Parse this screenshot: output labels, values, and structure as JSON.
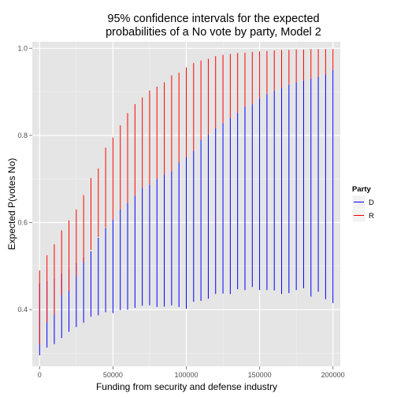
{
  "chart_data": {
    "type": "errorbar",
    "title_lines": [
      "95% confidence intervals for the expected",
      "probabilities of a No vote by party, Model 2"
    ],
    "xlabel": "Funding from security and defense industry",
    "ylabel": "Expected P(votes No)",
    "xlim": [
      -5000,
      205000
    ],
    "ylim": [
      0.27,
      1.015
    ],
    "x_ticks": [
      0,
      50000,
      100000,
      150000,
      200000
    ],
    "x_tick_labels": [
      "0",
      "50000",
      "100000",
      "150000",
      "200000"
    ],
    "y_ticks": [
      0.4,
      0.6,
      0.8,
      1.0
    ],
    "y_tick_labels": [
      "0.4",
      "0.6",
      "0.8",
      "1.0"
    ],
    "grid": true,
    "legend": {
      "title": "Party",
      "position": "right"
    },
    "series": [
      {
        "name": "D",
        "color": "#0000ff",
        "x": [
          0,
          5000,
          10000,
          15000,
          20000,
          25000,
          30000,
          35000,
          40000,
          45000,
          50000,
          55000,
          60000,
          65000,
          70000,
          75000,
          80000,
          85000,
          90000,
          95000,
          100000,
          105000,
          110000,
          115000,
          120000,
          125000,
          130000,
          135000,
          140000,
          145000,
          150000,
          155000,
          160000,
          165000,
          170000,
          175000,
          180000,
          185000,
          190000,
          195000,
          200000
        ],
        "lower": [
          0.295,
          0.313,
          0.321,
          0.335,
          0.349,
          0.36,
          0.37,
          0.384,
          0.387,
          0.394,
          0.392,
          0.399,
          0.4,
          0.404,
          0.409,
          0.41,
          0.406,
          0.407,
          0.41,
          0.406,
          0.402,
          0.418,
          0.42,
          0.425,
          0.436,
          0.437,
          0.436,
          0.447,
          0.445,
          0.452,
          0.445,
          0.445,
          0.444,
          0.436,
          0.438,
          0.445,
          0.449,
          0.43,
          0.441,
          0.424,
          0.415
        ],
        "upper": [
          0.46,
          0.465,
          0.472,
          0.482,
          0.493,
          0.507,
          0.52,
          0.534,
          0.565,
          0.588,
          0.607,
          0.63,
          0.645,
          0.662,
          0.68,
          0.687,
          0.7,
          0.71,
          0.718,
          0.738,
          0.75,
          0.765,
          0.79,
          0.802,
          0.816,
          0.828,
          0.84,
          0.852,
          0.866,
          0.872,
          0.885,
          0.895,
          0.903,
          0.91,
          0.917,
          0.922,
          0.926,
          0.93,
          0.935,
          0.94,
          0.95
        ]
      },
      {
        "name": "R",
        "color": "#ff0000",
        "x": [
          0,
          5000,
          10000,
          15000,
          20000,
          25000,
          30000,
          35000,
          40000,
          45000,
          50000,
          55000,
          60000,
          65000,
          70000,
          75000,
          80000,
          85000,
          90000,
          95000,
          100000,
          105000,
          110000,
          115000,
          120000,
          125000,
          130000,
          135000,
          140000,
          145000,
          150000,
          155000,
          160000,
          165000,
          170000,
          175000,
          180000,
          185000,
          190000,
          195000,
          200000
        ],
        "lower": [
          0.32,
          0.371,
          0.389,
          0.434,
          0.443,
          0.477,
          0.509,
          0.537,
          0.567,
          0.589,
          0.607,
          0.63,
          0.645,
          0.662,
          0.68,
          0.687,
          0.7,
          0.71,
          0.718,
          0.738,
          0.75,
          0.765,
          0.79,
          0.802,
          0.816,
          0.828,
          0.84,
          0.852,
          0.866,
          0.872,
          0.885,
          0.895,
          0.903,
          0.91,
          0.917,
          0.922,
          0.926,
          0.93,
          0.935,
          0.94,
          0.95
        ],
        "upper": [
          0.49,
          0.525,
          0.55,
          0.582,
          0.605,
          0.63,
          0.663,
          0.702,
          0.724,
          0.772,
          0.795,
          0.823,
          0.851,
          0.872,
          0.887,
          0.903,
          0.912,
          0.922,
          0.938,
          0.944,
          0.956,
          0.966,
          0.972,
          0.976,
          0.982,
          0.985,
          0.987,
          0.989,
          0.99,
          0.992,
          0.993,
          0.994,
          0.995,
          0.996,
          0.996,
          0.997,
          0.997,
          0.998,
          0.998,
          0.998,
          0.998
        ]
      }
    ]
  }
}
